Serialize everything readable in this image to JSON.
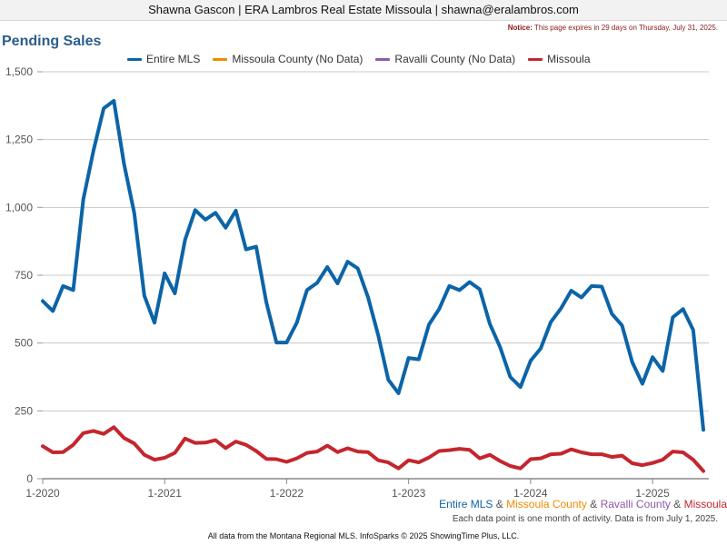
{
  "header": {
    "text": "Shawna Gascon | ERA Lambros Real Estate Missoula | shawna@eralambros.com"
  },
  "notice": {
    "label": "Notice:",
    "text": "This page expires in 29 days on Thursday, July 31, 2025."
  },
  "bottom_legend": {
    "parts": [
      "Entire MLS",
      "Missoula County",
      "Ravalli County",
      "Missoula"
    ],
    "separator": "&"
  },
  "bottom_note": "Each data point is one month of activity. Data is from July 1, 2025.",
  "footer": "All data from the Montana Regional MLS. InfoSparks © 2025 ShowingTime Plus, LLC.",
  "chart_data": {
    "type": "line",
    "title": "Pending Sales",
    "xlabel": "",
    "ylabel": "",
    "ylim": [
      0,
      1500
    ],
    "yticks": [
      0,
      250,
      500,
      750,
      1000,
      1250,
      1500
    ],
    "ytick_labels": [
      "0",
      "250",
      "500",
      "750",
      "1,000",
      "1,250",
      "1,500"
    ],
    "x_start": "2020-01",
    "xticks": [
      "2020-01",
      "2021-01",
      "2022-01",
      "2023-01",
      "2024-01",
      "2025-01"
    ],
    "xtick_labels": [
      "1-2020",
      "1-2021",
      "1-2022",
      "1-2023",
      "1-2024",
      "1-2025"
    ],
    "grid": true,
    "legend_position": "top",
    "series": [
      {
        "name": "Entire MLS",
        "color": "#0c64a8",
        "values": [
          655,
          618,
          710,
          695,
          1030,
          1210,
          1365,
          1393,
          1160,
          980,
          675,
          575,
          757,
          683,
          880,
          990,
          955,
          980,
          925,
          988,
          845,
          855,
          650,
          502,
          502,
          575,
          695,
          722,
          780,
          720,
          800,
          775,
          670,
          530,
          365,
          315,
          445,
          440,
          568,
          625,
          710,
          695,
          725,
          698,
          570,
          485,
          375,
          338,
          435,
          480,
          578,
          628,
          693,
          668,
          710,
          708,
          608,
          565,
          430,
          350,
          448,
          397,
          595,
          625,
          548,
          180
        ]
      },
      {
        "name": "Missoula County (No Data)",
        "color": "#f08c00",
        "values": []
      },
      {
        "name": "Ravalli County (No Data)",
        "color": "#8e5ba8",
        "values": []
      },
      {
        "name": "Missoula",
        "color": "#c4262e",
        "values": [
          120,
          97,
          98,
          125,
          168,
          176,
          165,
          190,
          150,
          130,
          88,
          70,
          77,
          95,
          148,
          132,
          133,
          142,
          113,
          137,
          125,
          102,
          73,
          72,
          62,
          75,
          95,
          100,
          122,
          98,
          112,
          100,
          98,
          68,
          60,
          38,
          68,
          60,
          78,
          102,
          105,
          110,
          106,
          75,
          88,
          65,
          47,
          38,
          72,
          75,
          90,
          92,
          108,
          97,
          90,
          90,
          80,
          85,
          57,
          50,
          58,
          70,
          100,
          97,
          70,
          28
        ]
      }
    ]
  }
}
